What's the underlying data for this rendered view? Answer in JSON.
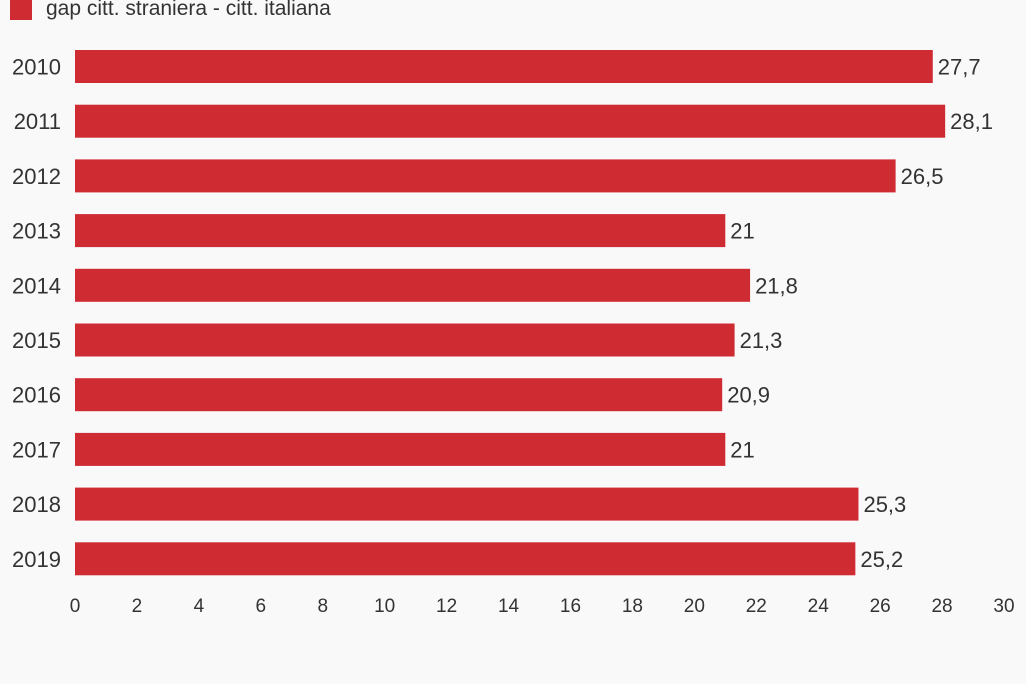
{
  "chart_data": {
    "type": "bar",
    "orientation": "horizontal",
    "categories": [
      "2010",
      "2011",
      "2012",
      "2013",
      "2014",
      "2015",
      "2016",
      "2017",
      "2018",
      "2019"
    ],
    "series": [
      {
        "name": "gap citt. straniera - citt. italiana",
        "values": [
          27.7,
          28.1,
          26.5,
          21,
          21.8,
          21.3,
          20.9,
          21,
          25.3,
          25.2
        ],
        "value_labels": [
          "27,7",
          "28,1",
          "26,5",
          "21",
          "21,8",
          "21,3",
          "20,9",
          "21",
          "25,3",
          "25,2"
        ],
        "color": "#cf2b33"
      }
    ],
    "xlim": [
      0,
      30
    ],
    "xticks": [
      "0",
      "2",
      "4",
      "6",
      "8",
      "10",
      "12",
      "14",
      "16",
      "18",
      "20",
      "22",
      "24",
      "26",
      "28",
      "30"
    ],
    "grid": false,
    "legend": "top-left"
  }
}
